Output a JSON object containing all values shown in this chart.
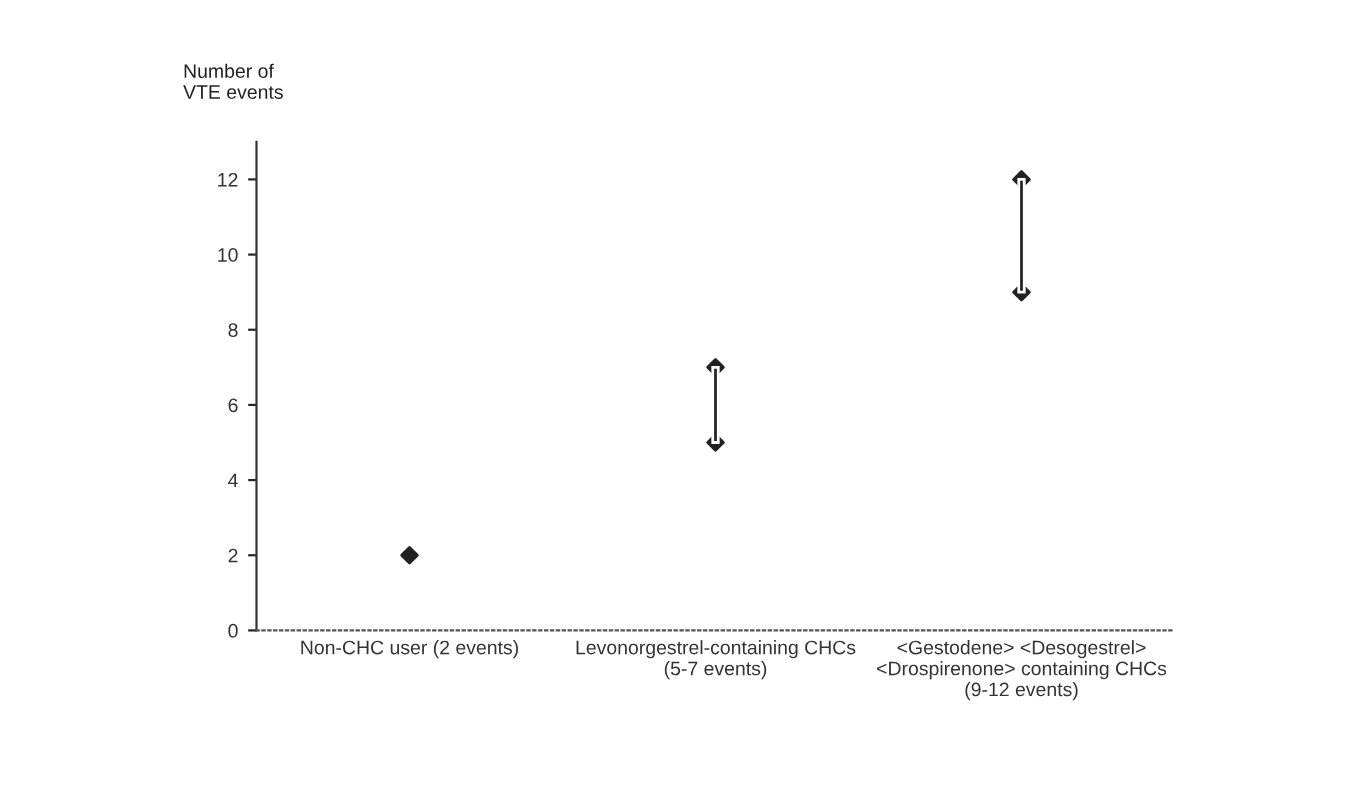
{
  "chart_data": {
    "type": "bar",
    "ylabel": "Number of\nVTE events",
    "categories": [
      "Non-CHC user (2 events)",
      "Levonorgestrel-containing CHCs\n(5-7 events)",
      "<Gestodene> <Desogestrel>\n<Drospirenone> containing CHCs\n(9-12 events)"
    ],
    "series": [
      {
        "color": "#222222",
        "base": [
          null,
          5,
          9
        ],
        "values": [
          null,
          2,
          3
        ]
      },
      {
        "type": "scatter",
        "color": "#222222",
        "x": [
          "Non-CHC user (2 events)",
          "Levonorgestrel-containing CHCs\n(5-7 events)",
          "<Gestodene> <Desogestrel>\n<Drospirenone> containing CHCs\n(9-12 events)"
        ],
        "values": [
          2,
          5,
          9
        ]
      },
      {
        "type": "scatter",
        "color": "#222222",
        "x": [
          "Non-CHC user (2 events)",
          "Levonorgestrel-containing CHCs\n(5-7 events)",
          "<Gestodene> <Desogestrel>\n<Drospirenone> containing CHCs\n(9-12 events)"
        ],
        "values": [
          null,
          7,
          12
        ]
      }
    ],
    "marker": "diamond",
    "ylim": [
      0,
      13
    ],
    "yticks": [
      0,
      2,
      4,
      6,
      8,
      10,
      12
    ],
    "grid": false,
    "legend": false
  }
}
